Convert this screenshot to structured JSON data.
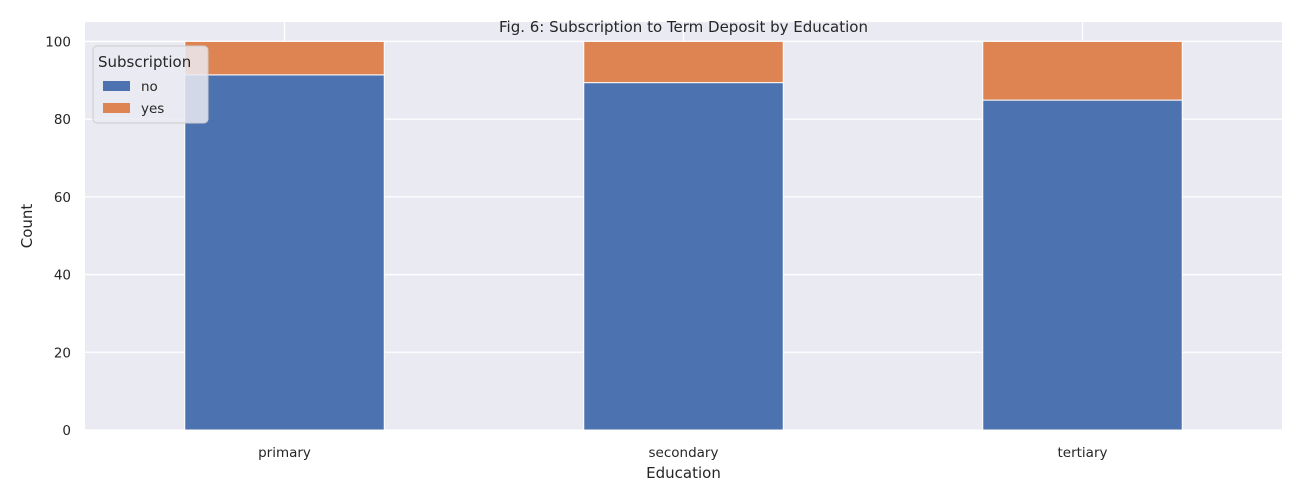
{
  "chart_data": {
    "type": "bar",
    "stacked": true,
    "title": "Fig. 6: Subscription to Term Deposit by Education",
    "xlabel": "Education",
    "ylabel": "Count",
    "categories": [
      "primary",
      "secondary",
      "tertiary"
    ],
    "series": [
      {
        "name": "no",
        "values": [
          91.4,
          89.4,
          84.9
        ]
      },
      {
        "name": "yes",
        "values": [
          8.6,
          10.6,
          15.1
        ]
      }
    ],
    "ylim": [
      0,
      105
    ],
    "yticks": [
      0,
      20,
      40,
      60,
      80,
      100
    ],
    "legend": {
      "title": "Subscription",
      "position": "top-left"
    },
    "grid": true,
    "colors": {
      "no": "#4c72b0",
      "yes": "#dd8452",
      "plot_background": "#eaeaf2",
      "grid": "#ffffff"
    }
  }
}
